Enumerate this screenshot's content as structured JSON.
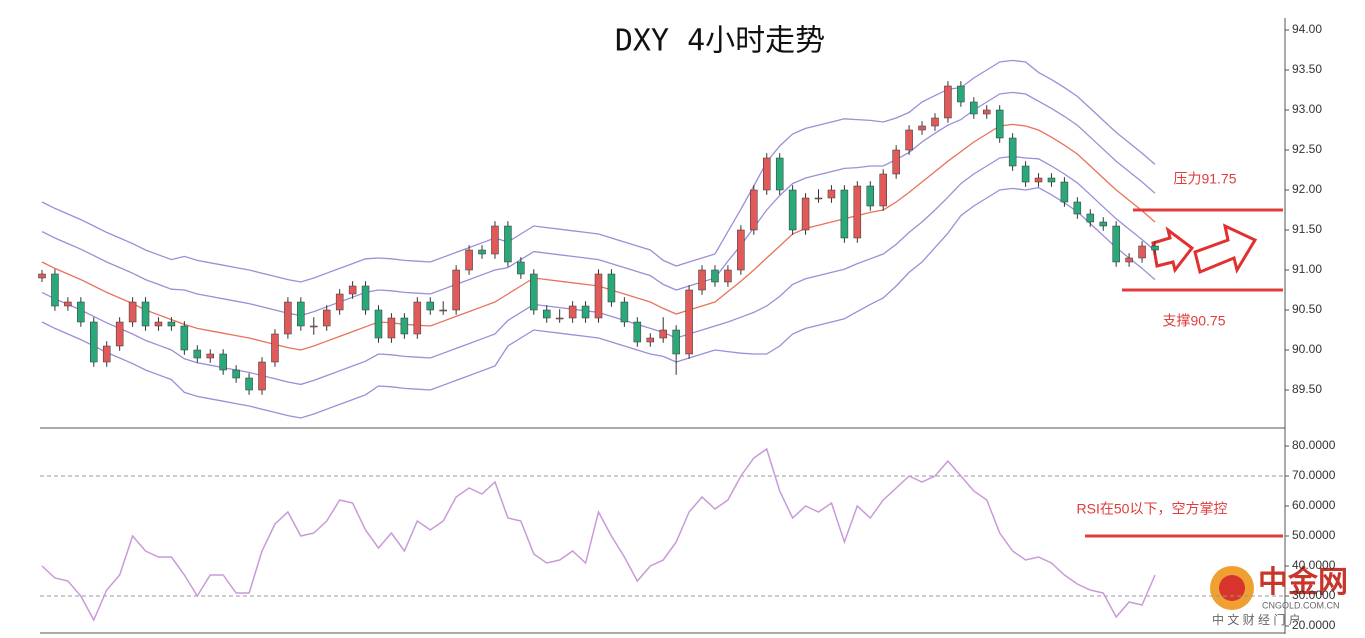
{
  "chart_data": [
    {
      "type": "candlestick",
      "title": "DXY 4小时走势",
      "up_color": "#e05a5a",
      "down_color": "#2aa87a",
      "ylim": [
        89.0,
        94.2
      ],
      "yticks": [
        {
          "value": 89.5,
          "label": "89.50"
        },
        {
          "value": 90,
          "label": "90.00"
        },
        {
          "value": 90.5,
          "label": "90.50"
        },
        {
          "value": 91,
          "label": "91.00"
        },
        {
          "value": 91.5,
          "label": "91.50"
        },
        {
          "value": 92,
          "label": "92.00"
        },
        {
          "value": 92.5,
          "label": "92.50"
        },
        {
          "value": 93,
          "label": "93.00"
        },
        {
          "value": 93.5,
          "label": "93.50"
        },
        {
          "value": 94,
          "label": "94.00"
        }
      ],
      "candles": [
        [
          90.9,
          91.0,
          90.85,
          90.95
        ],
        [
          90.95,
          91.01,
          90.49,
          90.55
        ],
        [
          90.55,
          90.66,
          90.49,
          90.6
        ],
        [
          90.6,
          90.66,
          90.29,
          90.35
        ],
        [
          90.35,
          90.41,
          89.79,
          89.85
        ],
        [
          89.85,
          90.11,
          89.79,
          90.05
        ],
        [
          90.05,
          90.41,
          89.99,
          90.35
        ],
        [
          90.35,
          90.66,
          90.29,
          90.6
        ],
        [
          90.6,
          90.66,
          90.24,
          90.3
        ],
        [
          90.3,
          90.41,
          90.24,
          90.35
        ],
        [
          90.35,
          90.41,
          90.24,
          90.3
        ],
        [
          90.3,
          90.36,
          89.94,
          90.0
        ],
        [
          90.0,
          90.06,
          89.84,
          89.9
        ],
        [
          89.9,
          90.01,
          89.84,
          89.95
        ],
        [
          89.95,
          90.01,
          89.69,
          89.75
        ],
        [
          89.75,
          89.81,
          89.59,
          89.65
        ],
        [
          89.65,
          89.71,
          89.44,
          89.5
        ],
        [
          89.5,
          89.91,
          89.44,
          89.85
        ],
        [
          89.85,
          90.26,
          89.79,
          90.2
        ],
        [
          90.2,
          90.66,
          90.14,
          90.6
        ],
        [
          90.6,
          90.66,
          90.24,
          90.3
        ],
        [
          90.3,
          90.41,
          90.19,
          90.3
        ],
        [
          90.3,
          90.56,
          90.24,
          90.5
        ],
        [
          90.5,
          90.76,
          90.44,
          90.7
        ],
        [
          90.7,
          90.86,
          90.64,
          90.8
        ],
        [
          90.8,
          90.86,
          90.44,
          90.5
        ],
        [
          90.5,
          90.56,
          90.09,
          90.15
        ],
        [
          90.15,
          90.46,
          90.09,
          90.4
        ],
        [
          90.4,
          90.46,
          90.14,
          90.2
        ],
        [
          90.2,
          90.66,
          90.14,
          90.6
        ],
        [
          90.6,
          90.66,
          90.44,
          90.5
        ],
        [
          90.5,
          90.61,
          90.44,
          90.5
        ],
        [
          90.5,
          91.06,
          90.44,
          91.0
        ],
        [
          91.0,
          91.31,
          90.94,
          91.25
        ],
        [
          91.25,
          91.31,
          91.14,
          91.2
        ],
        [
          91.2,
          91.61,
          91.14,
          91.55
        ],
        [
          91.55,
          91.61,
          91.04,
          91.1
        ],
        [
          91.1,
          91.16,
          90.89,
          90.95
        ],
        [
          90.95,
          91.01,
          90.44,
          90.5
        ],
        [
          90.5,
          90.56,
          90.34,
          90.4
        ],
        [
          90.4,
          90.51,
          90.34,
          90.4
        ],
        [
          90.4,
          90.61,
          90.34,
          90.55
        ],
        [
          90.55,
          90.61,
          90.34,
          90.4
        ],
        [
          90.4,
          91.01,
          90.34,
          90.95
        ],
        [
          90.95,
          91.01,
          90.54,
          90.6
        ],
        [
          90.6,
          90.66,
          90.29,
          90.35
        ],
        [
          90.35,
          90.41,
          90.04,
          90.1
        ],
        [
          90.1,
          90.21,
          90.04,
          90.15
        ],
        [
          90.15,
          90.41,
          90.09,
          90.25
        ],
        [
          90.25,
          90.31,
          89.69,
          89.95
        ],
        [
          89.95,
          90.81,
          89.89,
          90.75
        ],
        [
          90.75,
          91.06,
          90.69,
          91.0
        ],
        [
          91.0,
          91.06,
          90.79,
          90.85
        ],
        [
          90.85,
          91.06,
          90.79,
          91.0
        ],
        [
          91.0,
          91.56,
          90.94,
          91.5
        ],
        [
          91.5,
          92.06,
          91.44,
          92.0
        ],
        [
          92.0,
          92.46,
          91.94,
          92.4
        ],
        [
          92.4,
          92.46,
          91.94,
          92.0
        ],
        [
          92.0,
          92.06,
          91.44,
          91.5
        ],
        [
          91.5,
          91.96,
          91.44,
          91.9
        ],
        [
          91.9,
          92.01,
          91.84,
          91.9
        ],
        [
          91.9,
          92.06,
          91.84,
          92.0
        ],
        [
          92.0,
          92.06,
          91.34,
          91.4
        ],
        [
          91.4,
          92.11,
          91.34,
          92.05
        ],
        [
          92.05,
          92.11,
          91.74,
          91.8
        ],
        [
          91.8,
          92.26,
          91.74,
          92.2
        ],
        [
          92.2,
          92.56,
          92.14,
          92.5
        ],
        [
          92.5,
          92.81,
          92.44,
          92.75
        ],
        [
          92.75,
          92.86,
          92.69,
          92.8
        ],
        [
          92.8,
          92.96,
          92.74,
          92.9
        ],
        [
          92.9,
          93.36,
          92.84,
          93.3
        ],
        [
          93.3,
          93.36,
          93.04,
          93.1
        ],
        [
          93.1,
          93.16,
          92.89,
          92.95
        ],
        [
          92.95,
          93.06,
          92.89,
          93.0
        ],
        [
          93.0,
          93.06,
          92.59,
          92.65
        ],
        [
          92.65,
          92.71,
          92.24,
          92.3
        ],
        [
          92.3,
          92.36,
          92.04,
          92.1
        ],
        [
          92.1,
          92.21,
          92.04,
          92.15
        ],
        [
          92.15,
          92.21,
          92.04,
          92.1
        ],
        [
          92.1,
          92.16,
          91.79,
          91.85
        ],
        [
          91.85,
          91.91,
          91.64,
          91.7
        ],
        [
          91.7,
          91.76,
          91.54,
          91.6
        ],
        [
          91.6,
          91.66,
          91.49,
          91.55
        ],
        [
          91.55,
          91.61,
          91.04,
          91.1
        ],
        [
          91.1,
          91.21,
          91.04,
          91.15
        ],
        [
          91.15,
          91.36,
          91.09,
          91.3
        ],
        [
          91.3,
          91.36,
          91.19,
          91.25
        ]
      ],
      "bands": [
        {
          "color": "#9a8fd8",
          "values": [
            91.85,
            91.77,
            91.7,
            91.63,
            91.55,
            91.47,
            91.4,
            91.33,
            91.25,
            91.19,
            91.13,
            91.17,
            91.12,
            91.09,
            91.06,
            91.03,
            91.0,
            90.96,
            90.92,
            90.88,
            90.85,
            90.9,
            90.96,
            91.02,
            91.08,
            91.14,
            91.15,
            91.14,
            91.12,
            91.11,
            91.1,
            91.16,
            91.22,
            91.28,
            91.34,
            91.4,
            91.35,
            91.45,
            91.55,
            91.53,
            91.51,
            91.49,
            91.47,
            91.45,
            91.4,
            91.35,
            91.3,
            91.25,
            91.12,
            91.05,
            91.1,
            91.15,
            91.2,
            91.48,
            91.76,
            92.05,
            92.35,
            92.55,
            92.7,
            92.77,
            92.81,
            92.85,
            92.89,
            92.88,
            92.87,
            92.85,
            92.9,
            92.97,
            93.1,
            93.18,
            93.26,
            93.28,
            93.4,
            93.5,
            93.6,
            93.62,
            93.6,
            93.47,
            93.38,
            93.28,
            93.17,
            93.02,
            92.87,
            92.72,
            92.59,
            92.46,
            92.32
          ]
        },
        {
          "color": "#9a8fd8",
          "values": [
            91.48,
            91.4,
            91.33,
            91.26,
            91.18,
            91.1,
            91.03,
            90.96,
            90.88,
            90.82,
            90.76,
            90.75,
            90.7,
            90.67,
            90.64,
            90.61,
            90.58,
            90.54,
            90.5,
            90.46,
            90.43,
            90.48,
            90.54,
            90.6,
            90.66,
            90.72,
            90.75,
            90.74,
            90.72,
            90.71,
            90.7,
            90.76,
            90.82,
            90.88,
            90.94,
            91.0,
            91.03,
            91.13,
            91.23,
            91.21,
            91.19,
            91.17,
            91.15,
            91.13,
            91.08,
            91.03,
            90.98,
            90.93,
            90.82,
            90.75,
            90.8,
            90.85,
            90.9,
            91.11,
            91.31,
            91.53,
            91.75,
            91.93,
            92.08,
            92.15,
            92.19,
            92.23,
            92.27,
            92.28,
            92.3,
            92.3,
            92.38,
            92.47,
            92.6,
            92.71,
            92.81,
            92.88,
            93.0,
            93.1,
            93.2,
            93.22,
            93.2,
            93.11,
            93.02,
            92.92,
            92.81,
            92.66,
            92.51,
            92.36,
            92.23,
            92.1,
            91.96
          ]
        },
        {
          "color": "#e8735a",
          "values": [
            91.1,
            91.02,
            90.95,
            90.88,
            90.8,
            90.72,
            90.65,
            90.58,
            90.5,
            90.44,
            90.38,
            90.32,
            90.27,
            90.24,
            90.21,
            90.18,
            90.15,
            90.11,
            90.07,
            90.03,
            90.0,
            90.05,
            90.11,
            90.17,
            90.23,
            90.29,
            90.35,
            90.34,
            90.32,
            90.31,
            90.3,
            90.36,
            90.42,
            90.48,
            90.54,
            90.6,
            90.7,
            90.8,
            90.9,
            90.88,
            90.86,
            90.84,
            90.82,
            90.8,
            90.75,
            90.7,
            90.65,
            90.6,
            90.52,
            90.45,
            90.5,
            90.55,
            90.6,
            90.73,
            90.86,
            91.0,
            91.15,
            91.3,
            91.45,
            91.52,
            91.56,
            91.6,
            91.64,
            91.68,
            91.72,
            91.75,
            91.85,
            91.97,
            92.1,
            92.23,
            92.36,
            92.48,
            92.6,
            92.7,
            92.8,
            92.82,
            92.8,
            92.75,
            92.66,
            92.56,
            92.45,
            92.3,
            92.15,
            92.0,
            91.87,
            91.74,
            91.6
          ]
        },
        {
          "color": "#9a8fd8",
          "values": [
            90.72,
            90.64,
            90.57,
            90.5,
            90.42,
            90.34,
            90.27,
            90.2,
            90.12,
            90.06,
            90.0,
            89.89,
            89.84,
            89.81,
            89.78,
            89.75,
            89.72,
            89.68,
            89.64,
            89.6,
            89.57,
            89.62,
            89.68,
            89.74,
            89.8,
            89.86,
            89.95,
            89.94,
            89.92,
            89.91,
            89.9,
            89.96,
            90.02,
            90.08,
            90.14,
            90.2,
            90.37,
            90.47,
            90.57,
            90.55,
            90.53,
            90.51,
            90.49,
            90.47,
            90.42,
            90.37,
            90.32,
            90.27,
            90.22,
            90.15,
            90.2,
            90.25,
            90.3,
            90.35,
            90.41,
            90.47,
            90.55,
            90.67,
            90.82,
            90.89,
            90.93,
            90.97,
            91.01,
            91.08,
            91.14,
            91.2,
            91.32,
            91.47,
            91.6,
            91.75,
            91.91,
            92.08,
            92.2,
            92.3,
            92.4,
            92.42,
            92.4,
            92.39,
            92.3,
            92.2,
            92.09,
            91.94,
            91.79,
            91.64,
            91.51,
            91.38,
            91.24
          ]
        },
        {
          "color": "#9a8fd8",
          "values": [
            90.35,
            90.27,
            90.2,
            90.13,
            90.05,
            89.97,
            89.9,
            89.83,
            89.75,
            89.69,
            89.63,
            89.47,
            89.42,
            89.39,
            89.36,
            89.33,
            89.3,
            89.26,
            89.22,
            89.18,
            89.15,
            89.2,
            89.26,
            89.32,
            89.38,
            89.44,
            89.55,
            89.54,
            89.52,
            89.51,
            89.5,
            89.56,
            89.62,
            89.68,
            89.74,
            89.8,
            90.05,
            90.15,
            90.25,
            90.23,
            90.21,
            90.19,
            90.17,
            90.15,
            90.1,
            90.05,
            90.0,
            89.95,
            89.92,
            89.85,
            89.9,
            89.95,
            90.0,
            89.98,
            89.96,
            89.95,
            89.95,
            90.05,
            90.2,
            90.27,
            90.31,
            90.35,
            90.39,
            90.48,
            90.57,
            90.65,
            90.8,
            90.97,
            91.1,
            91.28,
            91.46,
            91.68,
            91.8,
            91.9,
            92.0,
            92.02,
            92.0,
            92.03,
            91.94,
            91.84,
            91.73,
            91.58,
            91.43,
            91.28,
            91.15,
            91.02,
            90.88
          ]
        }
      ],
      "level_color": "#e03c3c",
      "levels": [
        {
          "value": 91.75,
          "label": "压力91.75"
        },
        {
          "value": 90.75,
          "label": "支撑90.75"
        }
      ]
    },
    {
      "type": "line",
      "color": "#c99ad8",
      "ylim": [
        18,
        85
      ],
      "yticks": [
        {
          "value": 20,
          "label": "20.0000"
        },
        {
          "value": 30,
          "label": "30.0000"
        },
        {
          "value": 40,
          "label": "40.0000"
        },
        {
          "value": 50,
          "label": "50.0000"
        },
        {
          "value": 60,
          "label": "60.0000"
        },
        {
          "value": 70,
          "label": "70.0000"
        },
        {
          "value": 80,
          "label": "80.0000"
        }
      ],
      "reference_lines": [
        30,
        70
      ],
      "level_color": "#e03c3c",
      "levels": [
        {
          "value": 50,
          "label": "RSI在50以下，空方掌控"
        }
      ],
      "values": [
        40,
        36,
        35,
        30,
        22,
        32,
        37,
        50,
        45,
        43,
        43,
        37,
        30,
        37,
        37,
        31,
        31,
        45,
        54,
        58,
        50,
        51,
        55,
        62,
        61,
        52,
        46,
        51,
        45,
        55,
        52,
        55,
        63,
        66,
        64,
        68,
        56,
        55,
        44,
        41,
        42,
        45,
        41,
        58,
        50,
        43,
        35,
        40,
        42,
        48,
        58,
        63,
        59,
        62,
        70,
        76,
        79,
        65,
        56,
        60,
        58,
        61,
        48,
        60,
        56,
        62,
        66,
        70,
        68,
        70,
        75,
        70,
        65,
        62,
        51,
        45,
        42,
        43,
        41,
        37,
        34,
        32,
        31,
        23,
        28,
        27,
        37
      ]
    }
  ],
  "watermark": {
    "brand": "中金网",
    "site": "CNGOLD.COM.CN",
    "slogan": "中 文 财 经 门 户"
  }
}
